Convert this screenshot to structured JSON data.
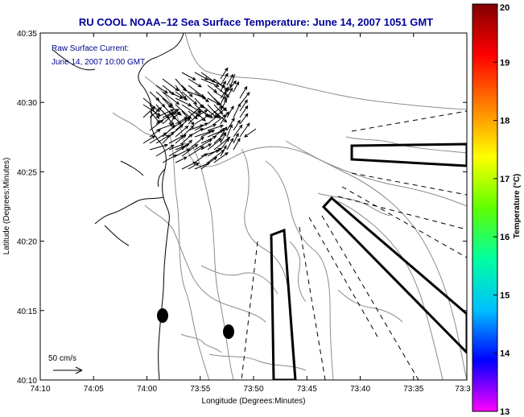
{
  "title": "RU COOL   NOAA–12  Sea Surface Temperature:  June 14, 2007 1051 GMT",
  "annotation": {
    "line1": "Raw Surface Current:",
    "line2": "June 14, 2007 10:00 GMT"
  },
  "scale": {
    "label": "50 cm/s"
  },
  "axes": {
    "xlabel": "Longitude (Degrees:Minutes)",
    "ylabel": "Latitude (Degrees:Minutes)",
    "xticks": [
      "74:10",
      "74:05",
      "74:00",
      "73:55",
      "73:50",
      "73:45",
      "73:40",
      "73:35",
      "73:3"
    ],
    "yticks": [
      "40:35",
      "40:30",
      "40:25",
      "40:20",
      "40:15",
      "40:10"
    ]
  },
  "colorbar": {
    "label": "Temperature (°C)",
    "ticks": [
      "20",
      "19",
      "18",
      "17",
      "16",
      "15",
      "14",
      "13"
    ],
    "min": 13,
    "max": 20,
    "colors": [
      "#ff00ff",
      "#0000ff",
      "#00c0ff",
      "#00ffa0",
      "#60ff00",
      "#ffff00",
      "#ff8000",
      "#ff0000",
      "#800000"
    ]
  },
  "colors": {
    "title": "#000099",
    "annotation": "#00008b",
    "frame": "#000000",
    "contour": "#8c8c8c",
    "coast": "#000000"
  }
}
